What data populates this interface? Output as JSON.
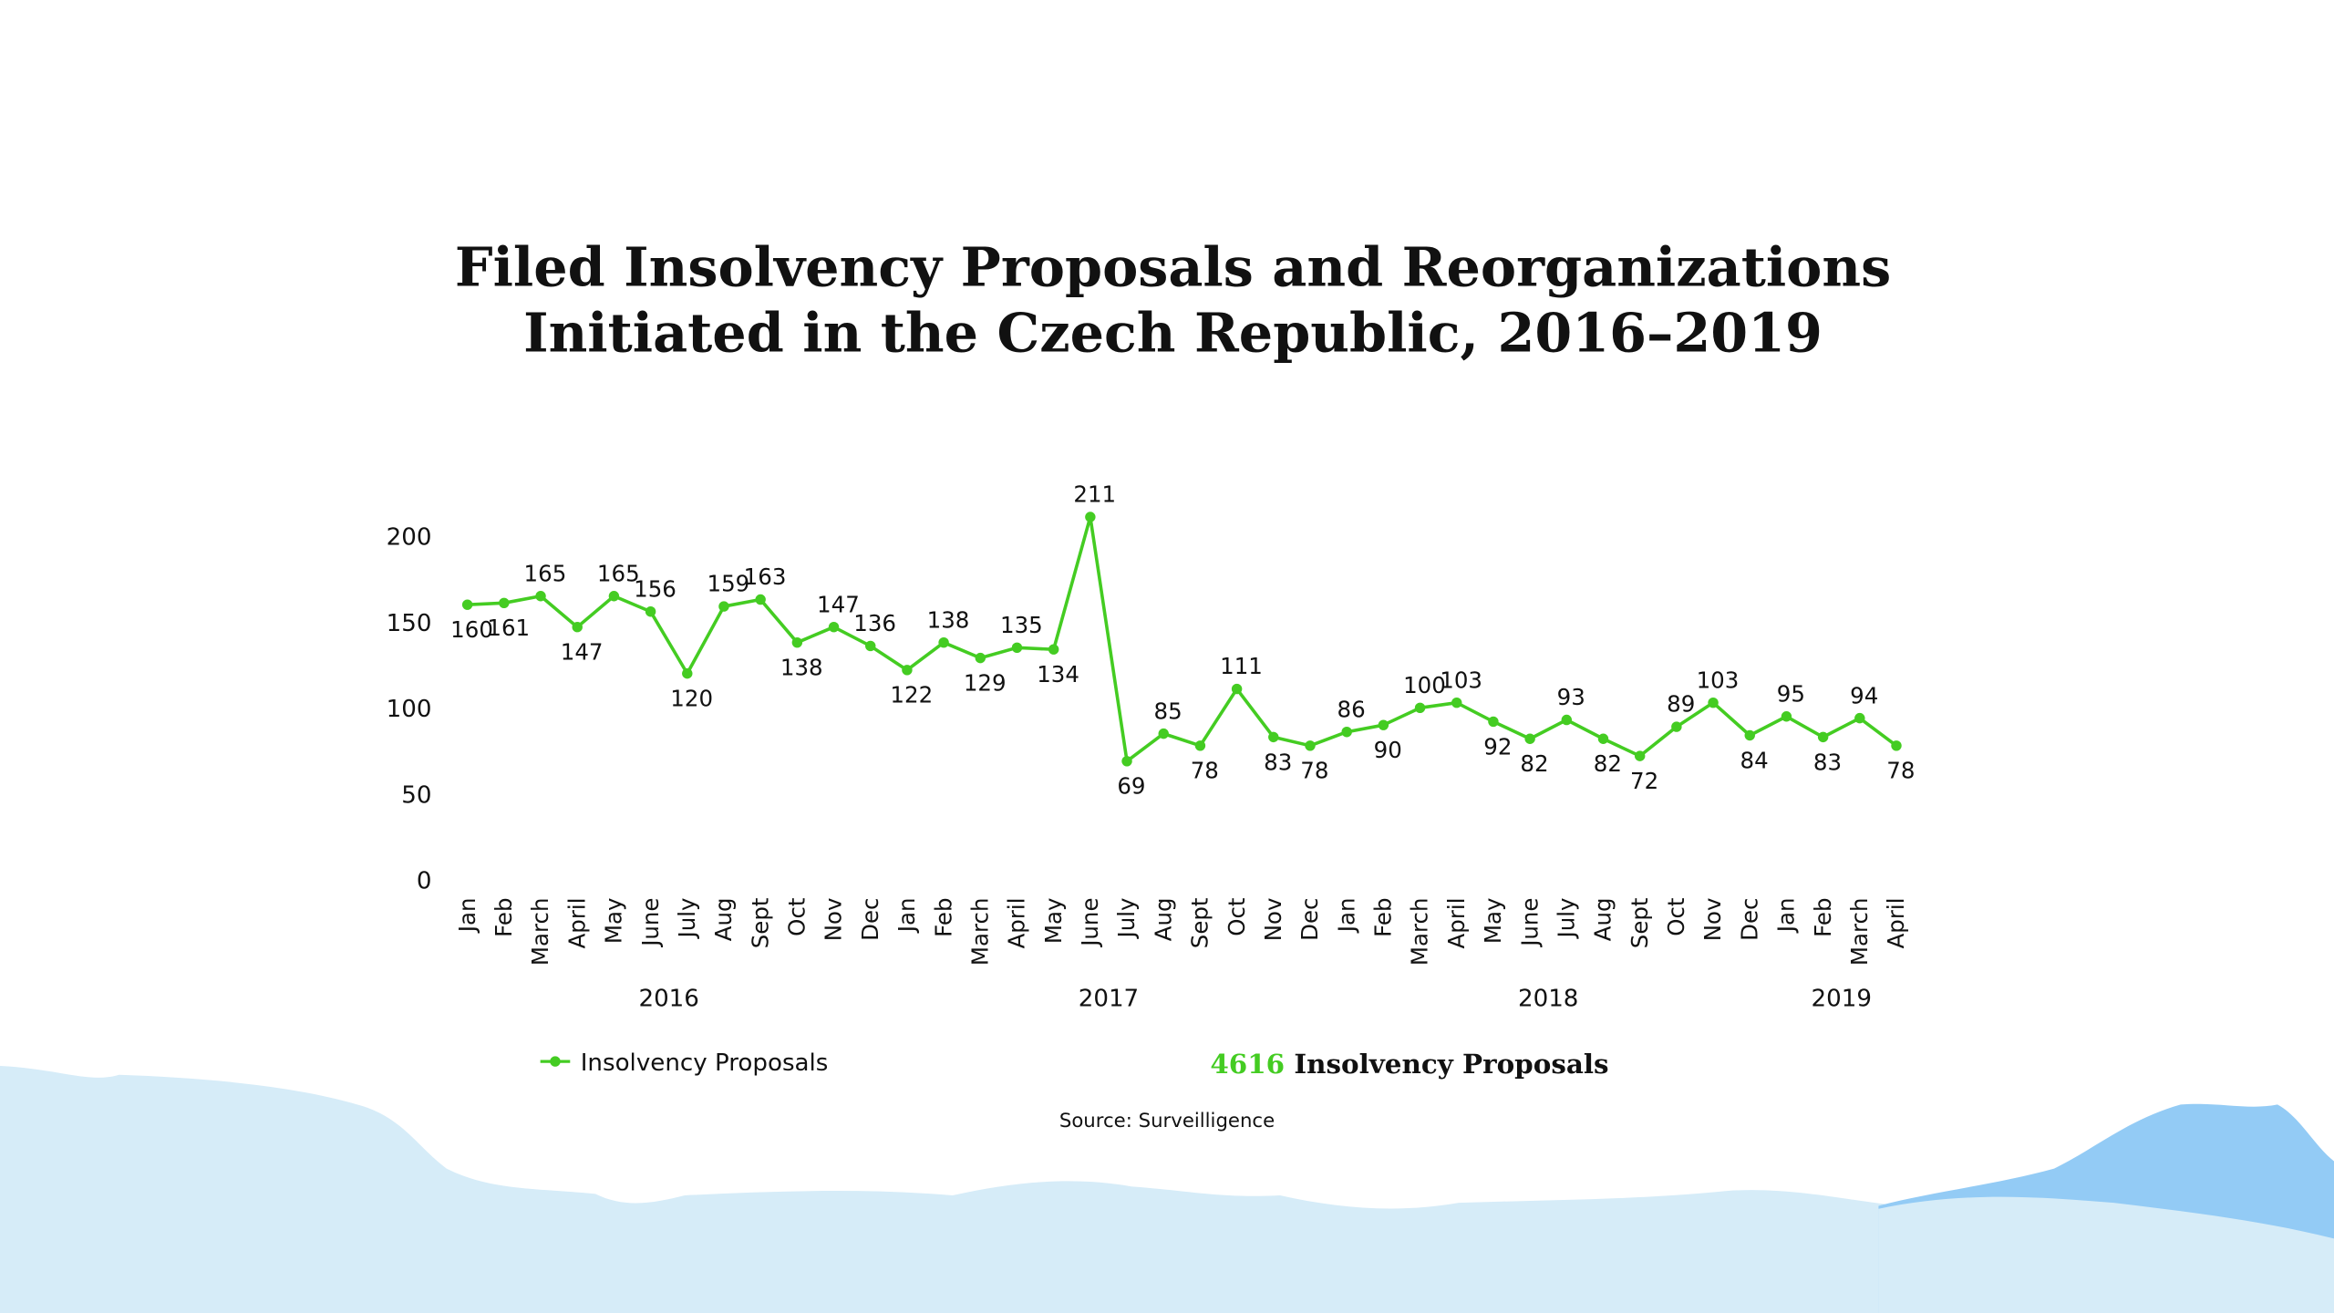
{
  "chart_data": {
    "type": "line",
    "title_lines": [
      "Filed Insolvency Proposals and Reorganizations",
      "Initiated in the Czech Republic, 2016–2019"
    ],
    "categories": [
      "Jan",
      "Feb",
      "March",
      "April",
      "May",
      "June",
      "July",
      "Aug",
      "Sept",
      "Oct",
      "Nov",
      "Dec",
      "Jan",
      "Feb",
      "March",
      "April",
      "May",
      "June",
      "July",
      "Aug",
      "Sept",
      "Oct",
      "Nov",
      "Dec",
      "Jan",
      "Feb",
      "March",
      "April",
      "May",
      "June",
      "July",
      "Aug",
      "Sept",
      "Oct",
      "Nov",
      "Dec",
      "Jan",
      "Feb",
      "March",
      "April"
    ],
    "years": [
      "2016",
      "2017",
      "2018",
      "2019"
    ],
    "series": [
      {
        "name": "Insolvency Proposals",
        "color": "#44cc22",
        "values": [
          160,
          161,
          165,
          147,
          165,
          156,
          120,
          159,
          163,
          138,
          147,
          136,
          122,
          138,
          129,
          135,
          134,
          211,
          69,
          85,
          78,
          111,
          83,
          78,
          86,
          90,
          100,
          103,
          92,
          82,
          93,
          82,
          72,
          89,
          103,
          84,
          95,
          83,
          94,
          78
        ]
      }
    ],
    "ylim": [
      0,
      200
    ],
    "yticks": [
      0,
      50,
      100,
      150,
      200
    ],
    "grid": false,
    "total": 4616,
    "total_label": "Insolvency Proposals",
    "source": "Source: Surveilligence"
  }
}
